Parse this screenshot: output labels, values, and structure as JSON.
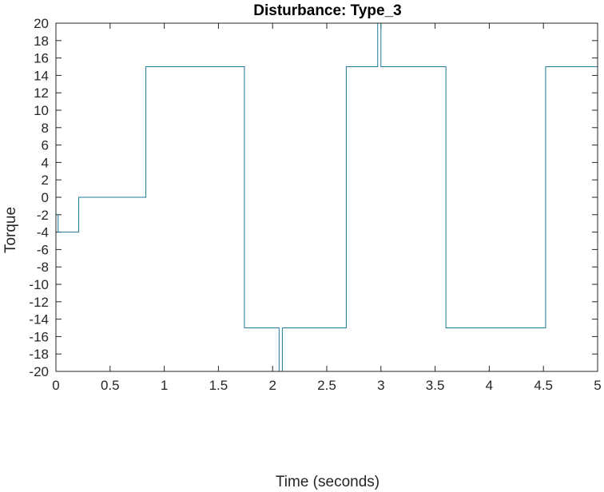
{
  "chart_data": {
    "type": "line",
    "title": "Disturbance: Type_3",
    "xlabel": "Time (seconds)",
    "ylabel": "Torque",
    "xlim": [
      0,
      5
    ],
    "ylim": [
      -20,
      20
    ],
    "xticks": [
      0,
      0.5,
      1,
      1.5,
      2,
      2.5,
      3,
      3.5,
      4,
      4.5,
      5
    ],
    "xtick_labels": [
      "0",
      "0.5",
      "1",
      "1.5",
      "2",
      "2.5",
      "3",
      "3.5",
      "4",
      "4.5",
      "5"
    ],
    "yticks": [
      -20,
      -18,
      -16,
      -14,
      -12,
      -10,
      -8,
      -6,
      -4,
      -2,
      0,
      2,
      4,
      6,
      8,
      10,
      12,
      14,
      16,
      18,
      20
    ],
    "ytick_labels": [
      "-20",
      "-18",
      "-16",
      "-14",
      "-12",
      "-10",
      "-8",
      "-6",
      "-4",
      "-2",
      "0",
      "2",
      "4",
      "6",
      "8",
      "10",
      "12",
      "14",
      "16",
      "18",
      "20"
    ],
    "grid": false,
    "line_color": "#1f7a99",
    "series": [
      {
        "x": [
          0,
          0,
          0.02,
          0.02,
          0.21,
          0.21,
          0.83,
          0.83,
          1.74,
          1.74,
          2.06,
          2.06,
          2.09,
          2.09,
          2.68,
          2.68,
          2.97,
          2.97,
          3.0,
          3.0,
          3.6,
          3.6,
          4.52,
          4.52,
          5.0
        ],
        "y": [
          0,
          -2,
          -2,
          -4,
          -4,
          0,
          0,
          15,
          15,
          -15,
          -15,
          -25,
          -25,
          -15,
          -15,
          15,
          15,
          25,
          25,
          15,
          15,
          -15,
          -15,
          15,
          15
        ]
      }
    ]
  }
}
